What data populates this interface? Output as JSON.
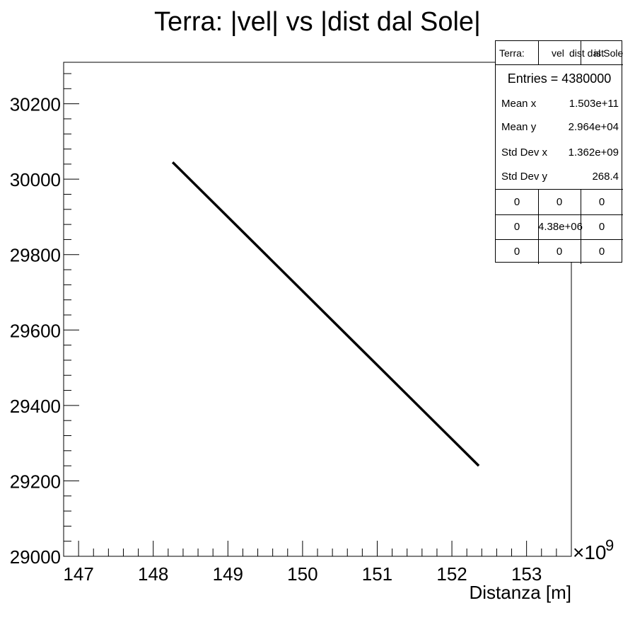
{
  "chart_data": {
    "type": "line",
    "title": "Terra: |vel| vs |dist dal Sole|",
    "xlabel": "Distanza [m]",
    "ylabel": "",
    "x_exponent_label": "×10",
    "x_exponent_power": "9",
    "xlim": [
      146.8,
      153.6
    ],
    "ylim": [
      29000,
      30310
    ],
    "x_ticks": [
      "147",
      "148",
      "149",
      "150",
      "151",
      "152",
      "153"
    ],
    "x_tick_values": [
      147,
      148,
      149,
      150,
      151,
      152,
      153
    ],
    "y_ticks": [
      "29000",
      "29200",
      "29400",
      "29600",
      "29800",
      "30000",
      "30200"
    ],
    "y_tick_values": [
      29000,
      29200,
      29400,
      29600,
      29800,
      30000,
      30200
    ],
    "series": [
      {
        "x": [
          148.26,
          152.36
        ],
        "y": [
          30045,
          29240
        ],
        "color": "#000000"
      }
    ],
    "grid": false
  },
  "stats_box": {
    "header": {
      "name": "Terra:",
      "col2": "vel",
      "col3": "dist dal Sole",
      "col4": "ist"
    },
    "entries_label": "Entries = 4380000",
    "rows": [
      {
        "key": "Mean x",
        "value": "1.503e+11"
      },
      {
        "key": "Mean y",
        "value": "2.964e+04"
      },
      {
        "key": "Std Dev x",
        "value": "1.362e+09"
      },
      {
        "key": "Std Dev y",
        "value": "268.4"
      }
    ],
    "grid": [
      [
        "0",
        "0",
        "0"
      ],
      [
        "0",
        "4.38e+06",
        "0"
      ],
      [
        "0",
        "0",
        "0"
      ]
    ]
  }
}
